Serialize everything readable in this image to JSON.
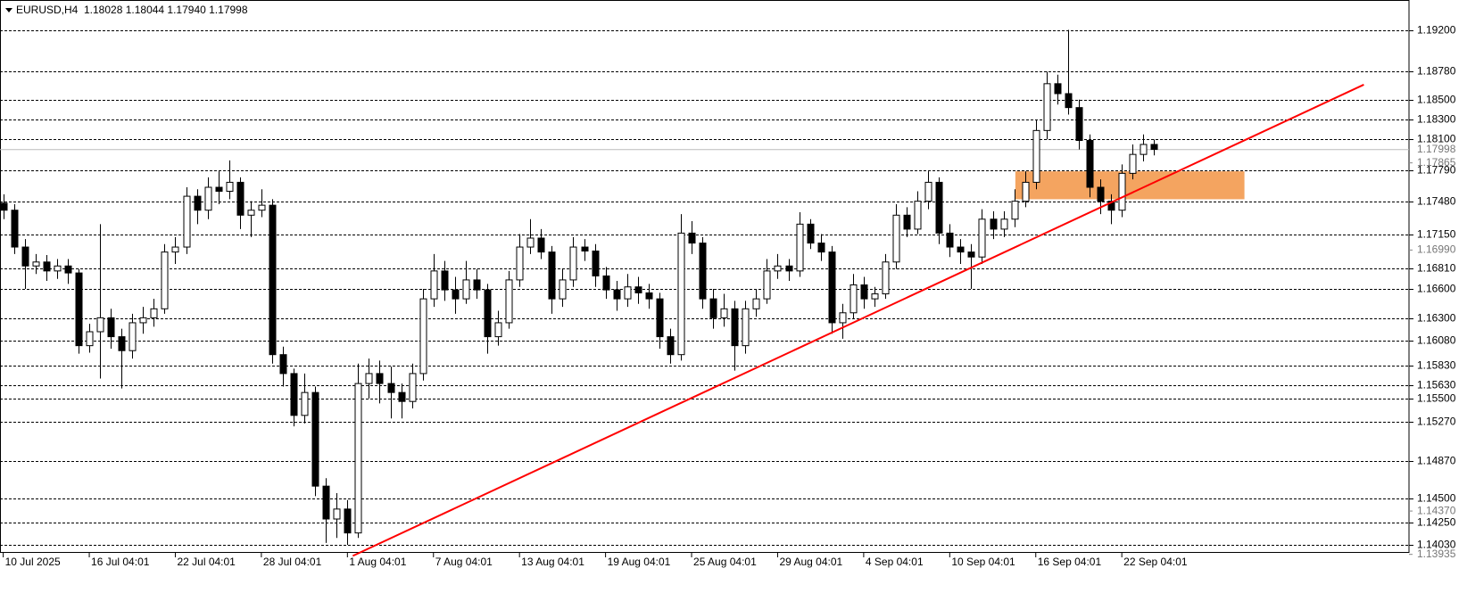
{
  "chart_data": {
    "type": "candlestick",
    "title": "EURUSD,H4",
    "quote": "1.18028 1.18044 1.17940 1.17998",
    "xlim": [
      -0.3,
      130.7
    ],
    "ylim": [
      1.1395,
      1.195
    ],
    "open": [
      1.1746,
      1.1739,
      1.1702,
      1.1683,
      1.1687,
      1.1678,
      1.1683,
      1.1676,
      1.1603,
      1.1617,
      1.1631,
      1.1612,
      1.1598,
      1.1626,
      1.1631,
      1.164,
      1.1697,
      1.1702,
      1.1753,
      1.1739,
      1.1762,
      1.1758,
      1.1767,
      1.1734,
      1.1739,
      1.1744,
      1.1594,
      1.1575,
      1.1533,
      1.1556,
      1.1462,
      1.1429,
      1.1439,
      1.1415,
      1.1565,
      1.1575,
      1.1565,
      1.1556,
      1.1547,
      1.1575,
      1.165,
      1.1678,
      1.1659,
      1.165,
      1.1669,
      1.1659,
      1.1612,
      1.1626,
      1.1669,
      1.1702,
      1.1711,
      1.1697,
      1.165,
      1.1669,
      1.1702,
      1.1698,
      1.1673,
      1.1659,
      1.165,
      1.1662,
      1.1656,
      1.165,
      1.1612,
      1.1594,
      1.1716,
      1.1706,
      1.165,
      1.1631,
      1.164,
      1.1603,
      1.164,
      1.165,
      1.1678,
      1.1683,
      1.1678,
      1.1725,
      1.1706,
      1.1697,
      1.1626,
      1.1636,
      1.1664,
      1.165,
      1.1655,
      1.1687,
      1.1734,
      1.172,
      1.1748,
      1.1767,
      1.1716,
      1.1702,
      1.1697,
      1.1692,
      1.173,
      1.172,
      1.173,
      1.1748,
      1.1767,
      1.1819,
      1.1866,
      1.1856,
      1.1842,
      1.1809,
      1.1762,
      1.1748,
      1.1739,
      1.1776,
      1.1795,
      1.1805
    ],
    "high": [
      1.1755,
      1.1745,
      1.171,
      1.1695,
      1.1694,
      1.169,
      1.169,
      1.168,
      1.1625,
      1.1725,
      1.164,
      1.162,
      1.1635,
      1.1642,
      1.165,
      1.1705,
      1.1712,
      1.1762,
      1.176,
      1.1772,
      1.1778,
      1.1789,
      1.1772,
      1.1748,
      1.176,
      1.175,
      1.1602,
      1.158,
      1.1575,
      1.1562,
      1.147,
      1.1455,
      1.1448,
      1.1585,
      1.159,
      1.1588,
      1.1582,
      1.1565,
      1.1585,
      1.166,
      1.1695,
      1.1688,
      1.1672,
      1.1688,
      1.168,
      1.1665,
      1.1638,
      1.1678,
      1.1715,
      1.173,
      1.172,
      1.1703,
      1.168,
      1.1712,
      1.171,
      1.1705,
      1.1682,
      1.1668,
      1.1675,
      1.1672,
      1.1665,
      1.1656,
      1.162,
      1.1735,
      1.1728,
      1.1712,
      1.166,
      1.1655,
      1.1648,
      1.1648,
      1.166,
      1.169,
      1.1695,
      1.169,
      1.1737,
      1.173,
      1.1715,
      1.1703,
      1.1645,
      1.1675,
      1.1672,
      1.1662,
      1.1695,
      1.1745,
      1.1742,
      1.1758,
      1.1778,
      1.1772,
      1.1725,
      1.171,
      1.1705,
      1.174,
      1.1738,
      1.1738,
      1.176,
      1.1778,
      1.183,
      1.1878,
      1.1875,
      1.192,
      1.185,
      1.1815,
      1.177,
      1.1755,
      1.1785,
      1.1805,
      1.1815,
      1.181
    ],
    "low": [
      1.173,
      1.1695,
      1.166,
      1.1675,
      1.1668,
      1.167,
      1.1665,
      1.1595,
      1.1596,
      1.157,
      1.16,
      1.156,
      1.159,
      1.1615,
      1.1622,
      1.1635,
      1.1685,
      1.1695,
      1.1725,
      1.173,
      1.1745,
      1.175,
      1.172,
      1.1712,
      1.1732,
      1.1585,
      1.1562,
      1.1522,
      1.1525,
      1.1452,
      1.1405,
      1.141,
      1.1403,
      1.141,
      1.155,
      1.1545,
      1.153,
      1.153,
      1.154,
      1.1568,
      1.1642,
      1.1648,
      1.1635,
      1.1645,
      1.165,
      1.1595,
      1.1603,
      1.162,
      1.1662,
      1.1695,
      1.169,
      1.1635,
      1.1642,
      1.1662,
      1.1688,
      1.1662,
      1.165,
      1.1638,
      1.1642,
      1.1645,
      1.164,
      1.16,
      1.1585,
      1.1588,
      1.1695,
      1.164,
      1.162,
      1.1622,
      1.1578,
      1.1595,
      1.1632,
      1.1645,
      1.167,
      1.1668,
      1.1672,
      1.17,
      1.1688,
      1.1615,
      1.161,
      1.163,
      1.164,
      1.1642,
      1.165,
      1.168,
      1.1712,
      1.1715,
      1.174,
      1.1705,
      1.1692,
      1.1685,
      1.166,
      1.1685,
      1.171,
      1.1712,
      1.1722,
      1.1742,
      1.176,
      1.181,
      1.1845,
      1.1835,
      1.18,
      1.1752,
      1.1735,
      1.1725,
      1.1732,
      1.177,
      1.1788,
      1.1794
    ],
    "close": [
      1.1739,
      1.1702,
      1.1683,
      1.1687,
      1.1678,
      1.1683,
      1.1676,
      1.1603,
      1.1617,
      1.1631,
      1.1612,
      1.1598,
      1.1626,
      1.1631,
      1.164,
      1.1697,
      1.1702,
      1.1753,
      1.1739,
      1.1762,
      1.1758,
      1.1767,
      1.1734,
      1.1739,
      1.1744,
      1.1594,
      1.1575,
      1.1533,
      1.1556,
      1.1462,
      1.1429,
      1.1439,
      1.1415,
      1.1565,
      1.1575,
      1.1565,
      1.1556,
      1.1547,
      1.1575,
      1.165,
      1.1678,
      1.1659,
      1.165,
      1.1669,
      1.1659,
      1.1612,
      1.1626,
      1.1669,
      1.1702,
      1.1711,
      1.1697,
      1.165,
      1.1669,
      1.1702,
      1.1698,
      1.1673,
      1.1659,
      1.165,
      1.1662,
      1.1656,
      1.165,
      1.1612,
      1.1594,
      1.1716,
      1.1706,
      1.165,
      1.1631,
      1.164,
      1.1603,
      1.164,
      1.165,
      1.1678,
      1.1683,
      1.1678,
      1.1725,
      1.1706,
      1.1697,
      1.1626,
      1.1636,
      1.1664,
      1.165,
      1.1655,
      1.1687,
      1.1734,
      1.172,
      1.1748,
      1.1767,
      1.1716,
      1.1702,
      1.1697,
      1.1692,
      1.173,
      1.172,
      1.173,
      1.1748,
      1.1767,
      1.1819,
      1.1866,
      1.1856,
      1.1842,
      1.1809,
      1.1762,
      1.1748,
      1.1739,
      1.1776,
      1.1795,
      1.1805,
      1.18
    ],
    "xticks": [
      {
        "value": 0,
        "label": "10 Jul 2025"
      },
      {
        "value": 8,
        "label": "16 Jul 04:01"
      },
      {
        "value": 16,
        "label": "22 Jul 04:01"
      },
      {
        "value": 24,
        "label": "28 Jul 04:01"
      },
      {
        "value": 32,
        "label": "1 Aug 04:01"
      },
      {
        "value": 40,
        "label": "7 Aug 04:01"
      },
      {
        "value": 48,
        "label": "13 Aug 04:01"
      },
      {
        "value": 56,
        "label": "19 Aug 04:01"
      },
      {
        "value": 64,
        "label": "25 Aug 04:01"
      },
      {
        "value": 72,
        "label": "29 Aug 04:01"
      },
      {
        "value": 80,
        "label": "4 Sep 04:01"
      },
      {
        "value": 88,
        "label": "10 Sep 04:01"
      },
      {
        "value": 96,
        "label": "16 Sep 04:01"
      },
      {
        "value": 104,
        "label": "22 Sep 04:01"
      }
    ],
    "yticks": [
      {
        "value": 1.17865,
        "label": "1.17865"
      },
      {
        "value": 1.1699,
        "label": "1.16990"
      },
      {
        "value": 1.1437,
        "label": "1.14370"
      },
      {
        "value": 1.13935,
        "label": "1.13935"
      }
    ],
    "levels": [
      {
        "value": 1.192,
        "label": "1.19200"
      },
      {
        "value": 1.1878,
        "label": "1.18780"
      },
      {
        "value": 1.185,
        "label": "1.18500"
      },
      {
        "value": 1.183,
        "label": "1.18300"
      },
      {
        "value": 1.181,
        "label": "1.18100"
      },
      {
        "value": 1.1779,
        "label": "1.17790"
      },
      {
        "value": 1.1748,
        "label": "1.17480"
      },
      {
        "value": 1.1715,
        "label": "1.17150"
      },
      {
        "value": 1.1681,
        "label": "1.16810"
      },
      {
        "value": 1.166,
        "label": "1.16600"
      },
      {
        "value": 1.163,
        "label": "1.16300"
      },
      {
        "value": 1.1608,
        "label": "1.16080"
      },
      {
        "value": 1.1583,
        "label": "1.15830"
      },
      {
        "value": 1.1563,
        "label": "1.15630"
      },
      {
        "value": 1.155,
        "label": "1.15500"
      },
      {
        "value": 1.1527,
        "label": "1.15270"
      },
      {
        "value": 1.1487,
        "label": "1.14870"
      },
      {
        "value": 1.145,
        "label": "1.14500"
      },
      {
        "value": 1.1425,
        "label": "1.14250"
      },
      {
        "value": 1.1403,
        "label": "1.14030"
      }
    ],
    "current_price": {
      "value": 1.17998,
      "label": "1.17998"
    },
    "trendline": {
      "x": [
        32.5,
        126.5
      ],
      "y": [
        1.1392,
        1.1865
      ],
      "color": "#ff0000"
    },
    "zone": {
      "x": [
        94.1,
        115.4
      ],
      "y": [
        1.175,
        1.1778
      ],
      "color": "#f4a460"
    }
  }
}
